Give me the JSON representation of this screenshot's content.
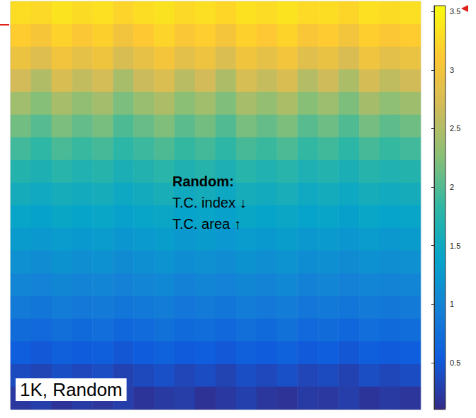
{
  "chart_data": {
    "type": "heatmap",
    "tick_labels": false,
    "annotations": [
      "Random:",
      "T.C. index ↓",
      "T.C. area ↑",
      "1K, Random"
    ],
    "colorbar_range": [
      0.1,
      3.55
    ],
    "colorbar_ticks": [
      0.5,
      1,
      1.5,
      2,
      2.5,
      3,
      3.5
    ],
    "cells": [
      [
        3.3,
        3.25,
        3.35,
        3.28,
        3.32,
        3.22,
        3.3,
        3.34,
        3.26,
        3.31,
        3.24,
        3.33,
        3.29,
        3.35,
        3.27,
        3.3,
        3.23,
        3.32,
        3.28,
        3.31
      ],
      [
        3.15,
        3.05,
        3.2,
        3.1,
        3.18,
        3.0,
        3.12,
        3.22,
        3.08,
        3.16,
        3.02,
        3.19,
        3.11,
        3.21,
        3.06,
        3.14,
        3.01,
        3.17,
        3.09,
        3.15
      ],
      [
        2.95,
        2.8,
        3.0,
        2.88,
        2.97,
        2.75,
        2.9,
        3.02,
        2.85,
        2.96,
        2.78,
        2.99,
        2.89,
        3.01,
        2.83,
        2.93,
        2.77,
        2.98,
        2.86,
        2.94
      ],
      [
        2.7,
        2.5,
        2.75,
        2.6,
        2.72,
        2.45,
        2.65,
        2.78,
        2.55,
        2.7,
        2.48,
        2.74,
        2.62,
        2.77,
        2.52,
        2.68,
        2.47,
        2.73,
        2.58,
        2.69
      ],
      [
        2.4,
        2.25,
        2.45,
        2.32,
        2.42,
        2.2,
        2.36,
        2.48,
        2.28,
        2.41,
        2.22,
        2.44,
        2.33,
        2.47,
        2.26,
        2.38,
        2.21,
        2.43,
        2.3,
        2.39
      ],
      [
        2.15,
        2.02,
        2.2,
        2.08,
        2.18,
        1.98,
        2.1,
        2.22,
        2.05,
        2.16,
        2.0,
        2.19,
        2.09,
        2.21,
        2.03,
        2.13,
        1.99,
        2.17,
        2.06,
        2.14
      ],
      [
        1.92,
        1.82,
        1.96,
        1.87,
        1.94,
        1.8,
        1.89,
        1.98,
        1.85,
        1.93,
        1.81,
        1.95,
        1.88,
        1.97,
        1.84,
        1.91,
        1.8,
        1.94,
        1.86,
        1.92
      ],
      [
        1.72,
        1.65,
        1.76,
        1.69,
        1.74,
        1.63,
        1.7,
        1.77,
        1.67,
        1.73,
        1.64,
        1.75,
        1.69,
        1.76,
        1.66,
        1.71,
        1.63,
        1.74,
        1.68,
        1.72
      ],
      [
        1.56,
        1.5,
        1.58,
        1.53,
        1.57,
        1.48,
        1.54,
        1.6,
        1.51,
        1.56,
        1.49,
        1.58,
        1.53,
        1.59,
        1.5,
        1.55,
        1.48,
        1.57,
        1.52,
        1.56
      ],
      [
        1.42,
        1.37,
        1.44,
        1.4,
        1.43,
        1.36,
        1.41,
        1.45,
        1.38,
        1.42,
        1.36,
        1.44,
        1.4,
        1.45,
        1.38,
        1.41,
        1.35,
        1.43,
        1.39,
        1.42
      ],
      [
        1.28,
        1.24,
        1.3,
        1.26,
        1.29,
        1.22,
        1.27,
        1.31,
        1.25,
        1.28,
        1.23,
        1.3,
        1.26,
        1.31,
        1.24,
        1.27,
        1.22,
        1.29,
        1.25,
        1.28
      ],
      [
        1.15,
        1.1,
        1.17,
        1.13,
        1.16,
        1.09,
        1.14,
        1.18,
        1.11,
        1.15,
        1.1,
        1.17,
        1.13,
        1.18,
        1.11,
        1.14,
        1.09,
        1.16,
        1.12,
        1.15
      ],
      [
        1.02,
        0.97,
        1.04,
        1.0,
        1.03,
        0.96,
        1.01,
        1.05,
        0.98,
        1.02,
        0.97,
        1.04,
        1.0,
        1.05,
        0.98,
        1.01,
        0.96,
        1.03,
        0.99,
        1.02
      ],
      [
        0.88,
        0.83,
        0.9,
        0.86,
        0.89,
        0.82,
        0.87,
        0.91,
        0.84,
        0.88,
        0.83,
        0.9,
        0.86,
        0.91,
        0.84,
        0.87,
        0.82,
        0.89,
        0.85,
        0.88
      ],
      [
        0.72,
        0.68,
        0.75,
        0.7,
        0.74,
        0.66,
        0.71,
        0.76,
        0.69,
        0.73,
        0.67,
        0.75,
        0.7,
        0.76,
        0.68,
        0.72,
        0.66,
        0.74,
        0.69,
        0.73
      ],
      [
        0.55,
        0.5,
        0.58,
        0.53,
        0.57,
        0.49,
        0.54,
        0.59,
        0.52,
        0.56,
        0.5,
        0.58,
        0.53,
        0.59,
        0.51,
        0.55,
        0.49,
        0.57,
        0.52,
        0.56
      ],
      [
        0.38,
        0.33,
        0.41,
        0.36,
        0.4,
        0.31,
        0.37,
        0.42,
        0.34,
        0.39,
        0.32,
        0.41,
        0.36,
        0.42,
        0.34,
        0.38,
        0.31,
        0.4,
        0.35,
        0.39
      ],
      [
        0.22,
        0.28,
        0.18,
        0.25,
        0.2,
        0.27,
        0.19,
        0.24,
        0.26,
        0.17,
        0.23,
        0.29,
        0.21,
        0.18,
        0.25,
        0.22,
        0.27,
        0.19,
        0.24,
        0.2
      ]
    ]
  }
}
